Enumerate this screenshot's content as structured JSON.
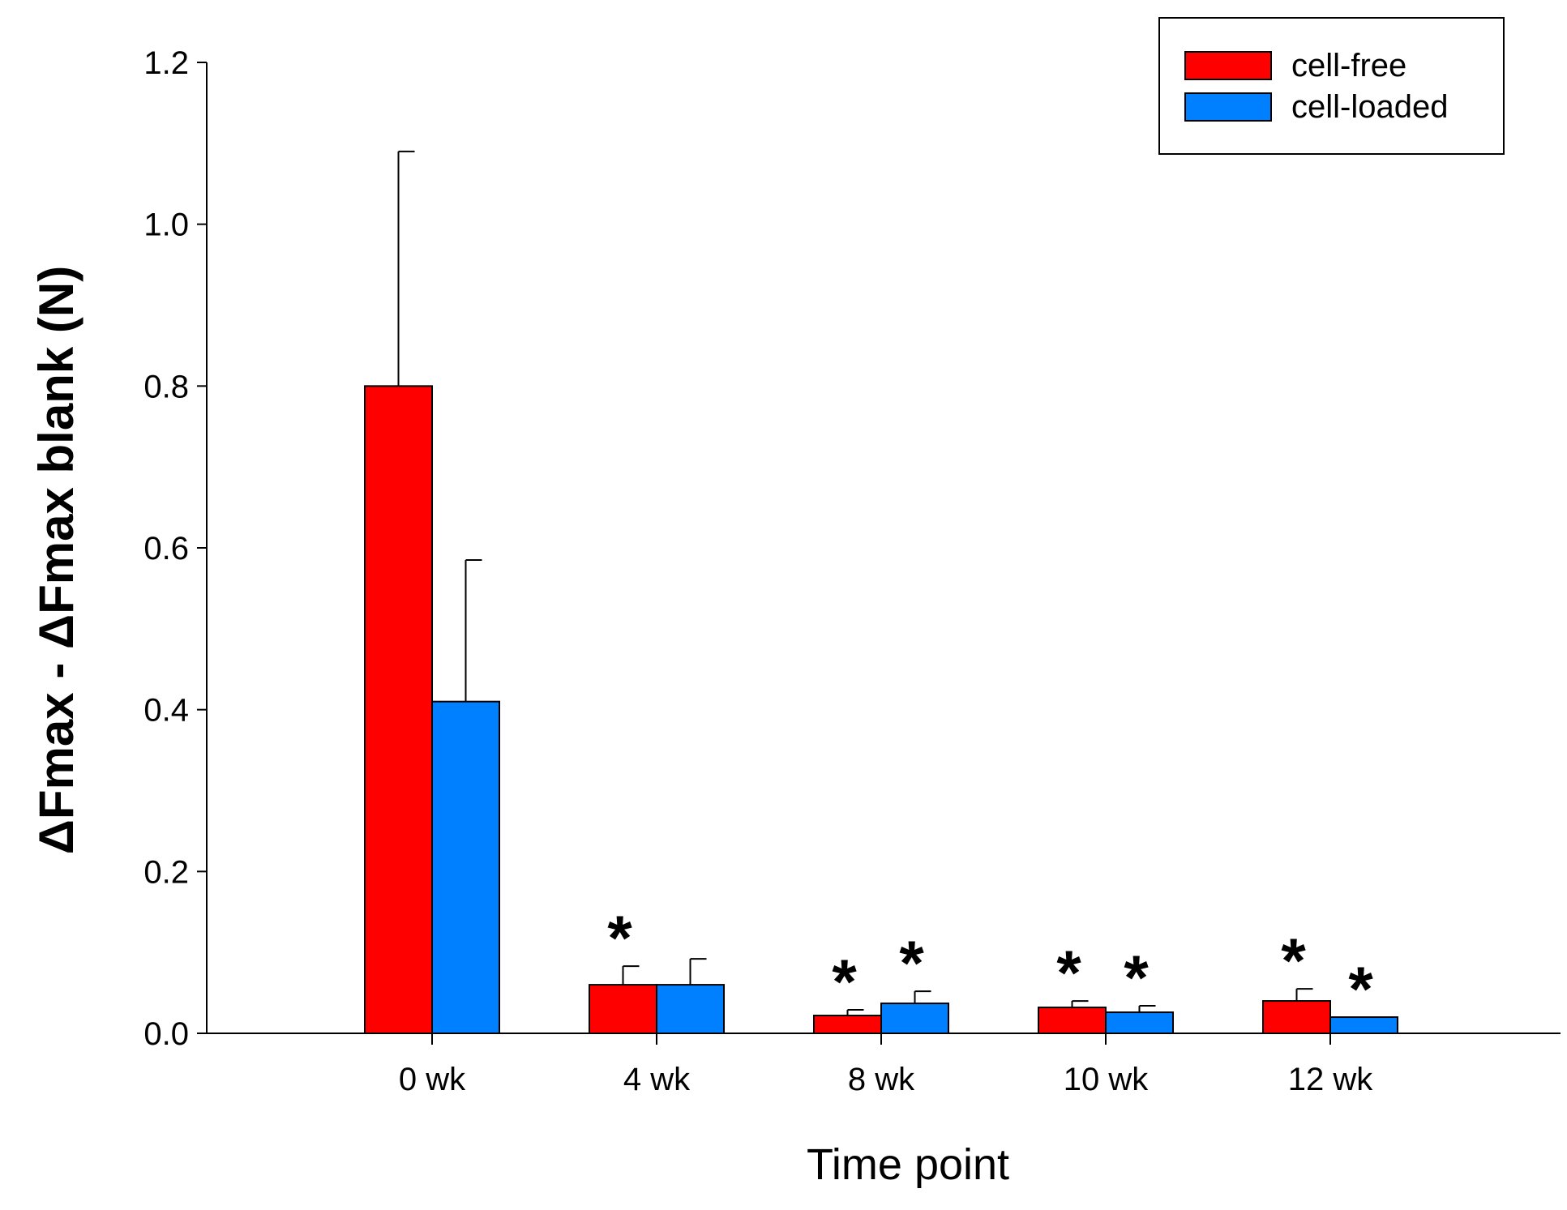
{
  "chart_data": {
    "type": "bar",
    "xlabel": "Time point",
    "ylabel": "ΔFmax - ΔFmax blank (N)",
    "ylim": [
      0,
      1.2
    ],
    "yticks": [
      0.0,
      0.2,
      0.4,
      0.6,
      0.8,
      1.0,
      1.2
    ],
    "ytick_labels": [
      "0.0",
      "0.2",
      "0.4",
      "0.6",
      "0.8",
      "1.0",
      "1.2"
    ],
    "grid": false,
    "legend_position": "top-right",
    "categories": [
      "0 wk",
      "4 wk",
      "8 wk",
      "10 wk",
      "12 wk"
    ],
    "series": [
      {
        "name": "cell-free",
        "color": "#ff0000",
        "values": [
          0.8,
          0.06,
          0.022,
          0.032,
          0.04
        ],
        "errors": [
          0.29,
          0.023,
          0.007,
          0.008,
          0.015
        ],
        "significant": [
          false,
          true,
          true,
          true,
          true
        ]
      },
      {
        "name": "cell-loaded",
        "color": "#0080ff",
        "values": [
          0.41,
          0.06,
          0.037,
          0.026,
          0.02
        ],
        "errors": [
          0.175,
          0.032,
          0.015,
          0.008,
          0.0
        ],
        "significant": [
          false,
          false,
          true,
          true,
          true
        ]
      }
    ],
    "significance_marker": "*"
  }
}
